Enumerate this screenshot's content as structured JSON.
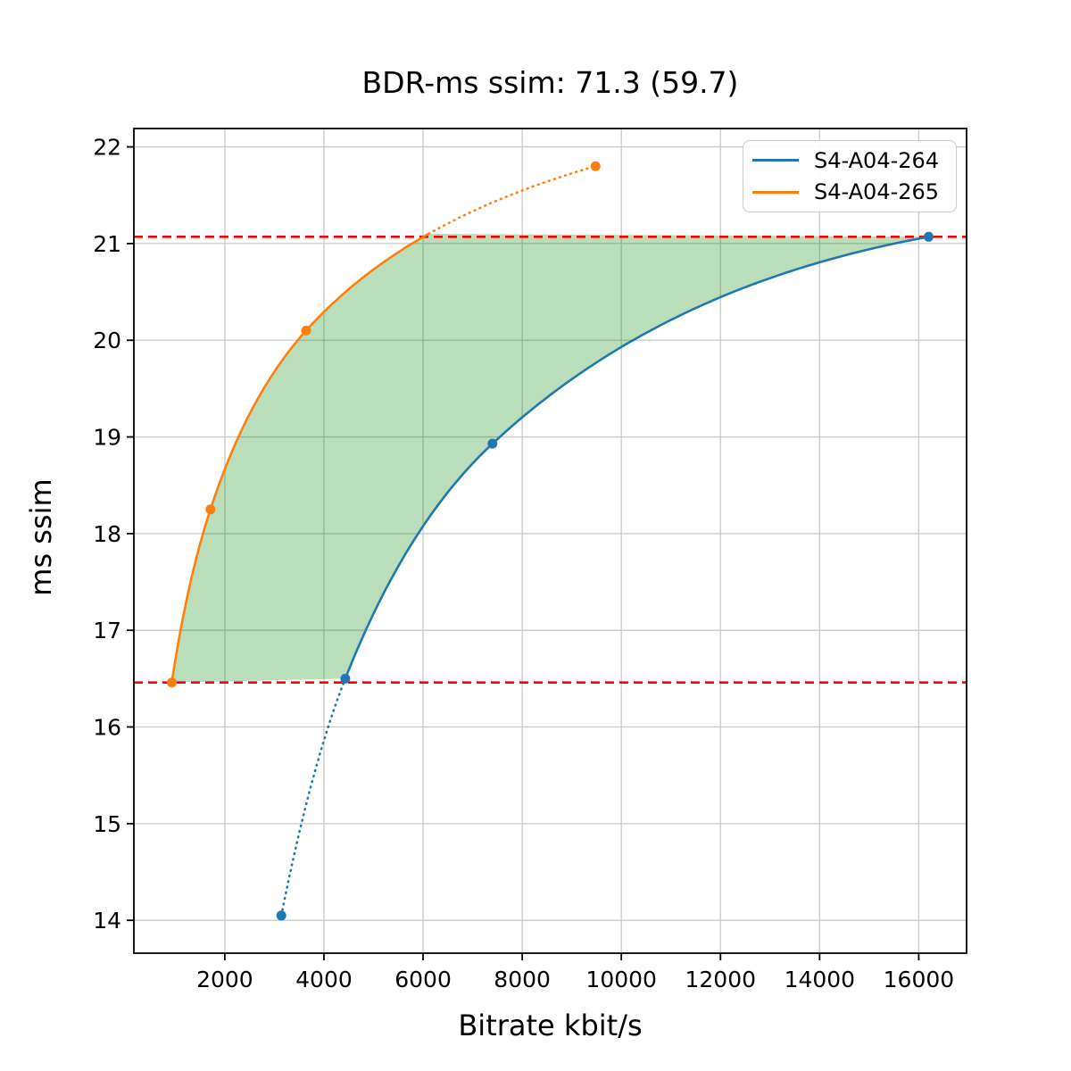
{
  "chart_data": {
    "type": "line",
    "title": "BDR-ms ssim: 71.3 (59.7)",
    "xlabel": "Bitrate kbit/s",
    "ylabel": "ms ssim",
    "xlim": [
      165,
      16965
    ],
    "ylim": [
      13.66,
      22.19
    ],
    "xticks": [
      2000,
      4000,
      6000,
      8000,
      10000,
      12000,
      14000,
      16000
    ],
    "yticks": [
      14,
      15,
      16,
      17,
      18,
      19,
      20,
      21,
      22
    ],
    "grid": true,
    "grid_color": "#c9c9c9",
    "legend_position": "upper right",
    "series": [
      {
        "name": "S4-A04-264",
        "color": "#1f77b4",
        "points": [
          [
            3140,
            14.05
          ],
          [
            4430,
            16.5
          ],
          [
            7400,
            18.93
          ],
          [
            16200,
            21.07
          ]
        ],
        "extrapolated_segment": "dotted-below-first-solid-point",
        "solid_from_x": 4430
      },
      {
        "name": "S4-A04-265",
        "color": "#ff7f0e",
        "points": [
          [
            930,
            16.46
          ],
          [
            1710,
            18.25
          ],
          [
            3640,
            20.1
          ],
          [
            9480,
            21.8
          ]
        ],
        "extrapolated_segment": "dotted-above-upper-hline",
        "solid_until_y": 21.07
      }
    ],
    "hlines": [
      {
        "y": 21.07,
        "color": "#ff0000",
        "style": "dashed"
      },
      {
        "y": 16.46,
        "color": "#ff0000",
        "style": "dashed"
      }
    ],
    "shaded_region": {
      "color": "#008000",
      "alpha": 0.27,
      "description": "BD overlap area between the two rate-distortion curves, clipped by the two red dashed hlines"
    }
  }
}
